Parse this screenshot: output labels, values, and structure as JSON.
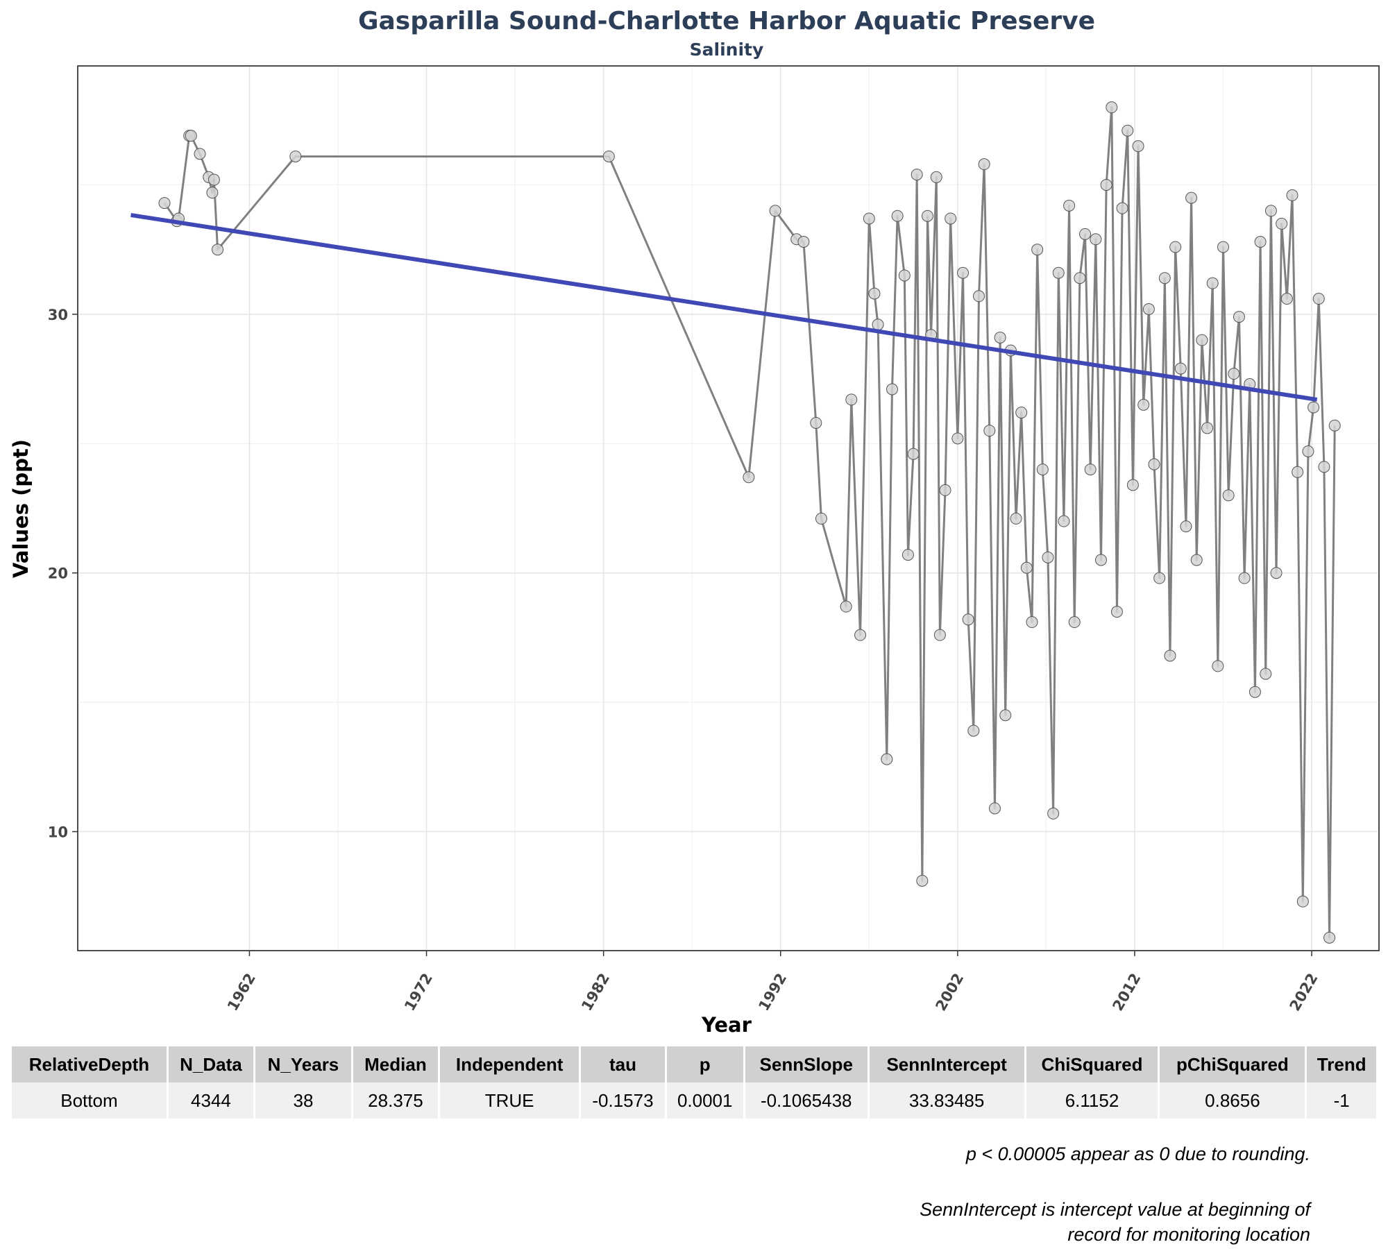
{
  "chart_data": {
    "type": "line",
    "title": "Gasparilla Sound-Charlotte Harbor Aquatic Preserve",
    "subtitle": "Salinity",
    "xlabel": "Year",
    "ylabel": "Values (ppt)",
    "xlim": [
      1952.3,
      2025.8
    ],
    "ylim": [
      5.4,
      39.6
    ],
    "x_ticks": [
      1962,
      1972,
      1982,
      1992,
      2002,
      2012,
      2022
    ],
    "x_tick_labels": [
      "1962",
      "1972",
      "1982",
      "1992",
      "2002",
      "2012",
      "2022"
    ],
    "y_ticks": [
      10,
      20,
      30
    ],
    "y_tick_labels": [
      "10",
      "20",
      "30"
    ],
    "grid": true,
    "series": [
      {
        "style": "line-with-points",
        "color": "#808080",
        "x": [
          1957.2,
          1957.9,
          1958.0,
          1958.6,
          1958.7,
          1959.2,
          1959.7,
          1959.9,
          1960.0,
          1960.2,
          1964.6,
          1982.3,
          1990.2,
          1991.7,
          1992.9,
          1993.3,
          1994.0,
          1994.3,
          1995.7,
          1996.0,
          1996.5,
          1997.0,
          1997.3,
          1997.5,
          1998.0,
          1998.3,
          1998.6,
          1999.0,
          1999.2,
          1999.5,
          1999.7,
          2000.0,
          2000.3,
          2000.5,
          2000.8,
          2001.0,
          2001.3,
          2001.6,
          2002.0,
          2002.3,
          2002.6,
          2002.9,
          2003.2,
          2003.5,
          2003.8,
          2004.1,
          2004.4,
          2004.7,
          2005.0,
          2005.3,
          2005.6,
          2005.9,
          2006.2,
          2006.5,
          2006.8,
          2007.1,
          2007.4,
          2007.7,
          2008.0,
          2008.3,
          2008.6,
          2008.9,
          2009.2,
          2009.5,
          2009.8,
          2010.1,
          2010.4,
          2010.7,
          2011.0,
          2011.3,
          2011.6,
          2011.9,
          2012.2,
          2012.5,
          2012.8,
          2013.1,
          2013.4,
          2013.7,
          2014.0,
          2014.3,
          2014.6,
          2014.9,
          2015.2,
          2015.5,
          2015.8,
          2016.1,
          2016.4,
          2016.7,
          2017.0,
          2017.3,
          2017.6,
          2017.9,
          2018.2,
          2018.5,
          2018.8,
          2019.1,
          2019.4,
          2019.7,
          2020.0,
          2020.3,
          2020.6,
          2020.9,
          2021.2,
          2021.5,
          2021.8,
          2022.1,
          2022.4,
          2022.7,
          2023.0,
          2023.3
        ],
        "y": [
          34.3,
          33.6,
          33.7,
          36.9,
          36.9,
          36.2,
          35.3,
          34.7,
          35.2,
          32.5,
          36.1,
          36.1,
          23.7,
          34.0,
          32.9,
          32.8,
          25.8,
          22.1,
          18.7,
          26.7,
          17.6,
          33.7,
          30.8,
          29.6,
          12.8,
          27.1,
          33.8,
          31.5,
          20.7,
          24.6,
          35.4,
          8.1,
          33.8,
          29.2,
          35.3,
          17.6,
          23.2,
          33.7,
          25.2,
          31.6,
          18.2,
          13.9,
          30.7,
          35.8,
          25.5,
          10.9,
          29.1,
          14.5,
          28.6,
          22.1,
          26.2,
          20.2,
          18.1,
          32.5,
          24.0,
          20.6,
          10.7,
          31.6,
          22.0,
          34.2,
          18.1,
          31.4,
          33.1,
          24.0,
          32.9,
          20.5,
          35.0,
          38.0,
          18.5,
          34.1,
          37.1,
          23.4,
          36.5,
          26.5,
          30.2,
          24.2,
          19.8,
          31.4,
          16.8,
          32.6,
          27.9,
          21.8,
          34.5,
          20.5,
          29.0,
          25.6,
          31.2,
          16.4,
          32.6,
          23.0,
          27.7,
          29.9,
          19.8,
          27.3,
          15.4,
          32.8,
          16.1,
          34.0,
          20.0,
          33.5,
          30.6,
          34.6,
          23.9,
          7.3,
          24.7,
          26.4,
          30.6,
          24.1,
          5.9,
          25.7
        ],
        "points": "sampled"
      },
      {
        "style": "trend-line",
        "color": "#3f48b5",
        "x": [
          1955.3,
          2022.3
        ],
        "y": [
          33.83485,
          26.7
        ]
      }
    ]
  },
  "table": {
    "headers": [
      "RelativeDepth",
      "N_Data",
      "N_Years",
      "Median",
      "Independent",
      "tau",
      "p",
      "SennSlope",
      "SennIntercept",
      "ChiSquared",
      "pChiSquared",
      "Trend"
    ],
    "row": [
      "Bottom",
      "4344",
      "38",
      "28.375",
      "TRUE",
      "-0.1573",
      "0.0001",
      "-0.1065438",
      "33.83485",
      "6.1152",
      "0.8656",
      "-1"
    ]
  },
  "notes": {
    "rounding": "p < 0.00005 appear as 0 due to rounding.",
    "intercept_line1": "SennIntercept is intercept value at beginning of",
    "intercept_line2": "record for monitoring location"
  }
}
